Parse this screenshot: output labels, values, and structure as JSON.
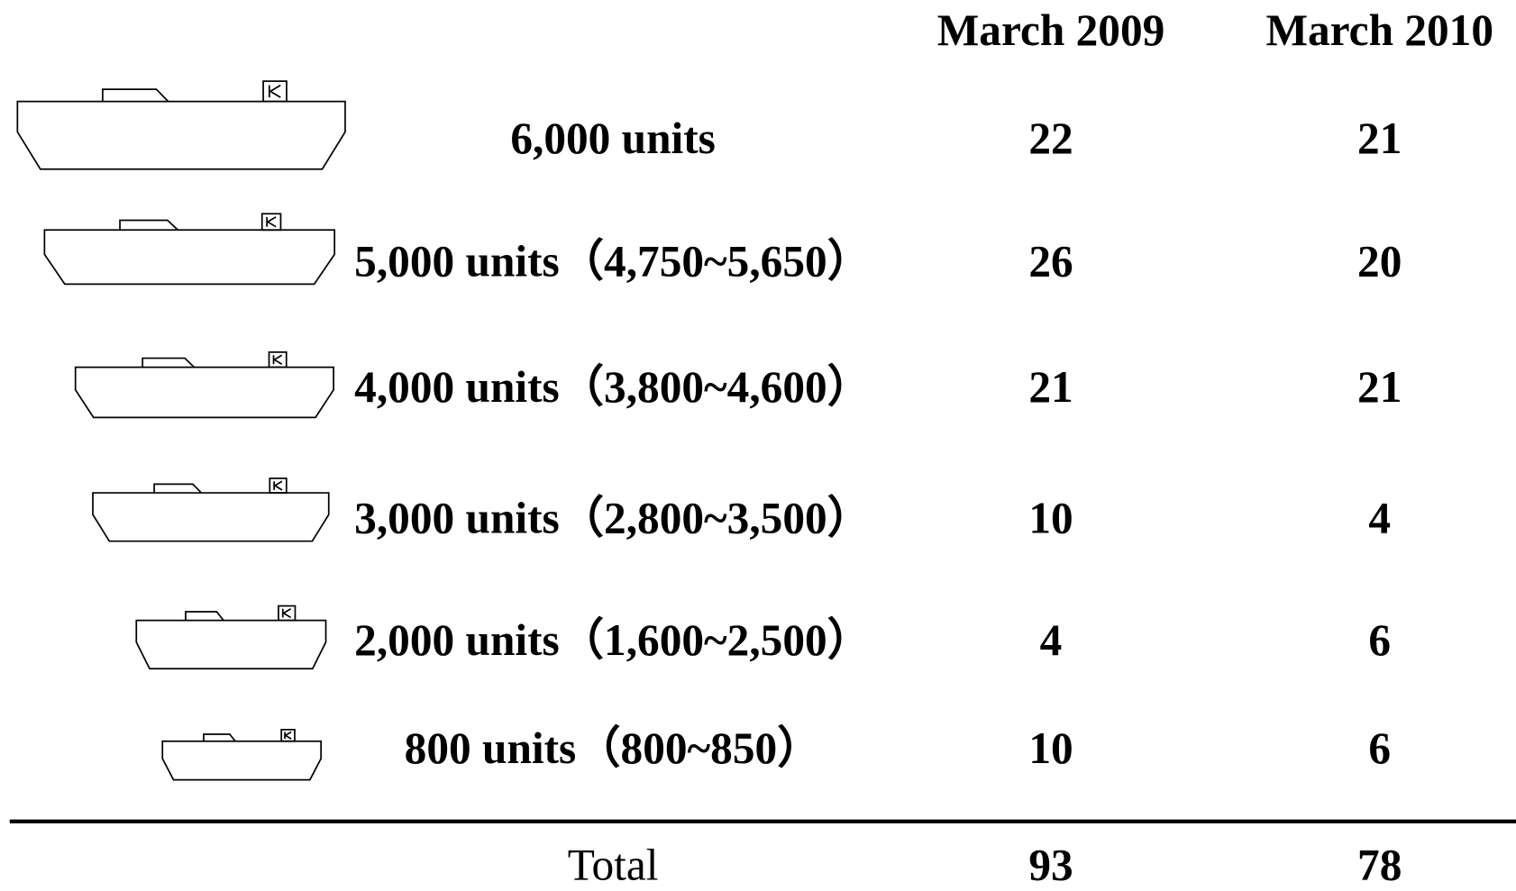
{
  "table": {
    "columns": [
      "March 2009",
      "March 2010"
    ],
    "rows": [
      {
        "label": "6,000 units",
        "values": [
          22,
          21
        ]
      },
      {
        "label": "5,000 units（4,750~5,650）",
        "values": [
          26,
          20
        ]
      },
      {
        "label": "4,000 units（3,800~4,600）",
        "values": [
          21,
          21
        ]
      },
      {
        "label": "3,000 units（2,800~3,500）",
        "values": [
          10,
          4
        ]
      },
      {
        "label": "2,000 units（1,600~2,500）",
        "values": [
          4,
          6
        ]
      },
      {
        "label": "800 units（800~850）",
        "values": [
          10,
          6
        ]
      }
    ],
    "total": {
      "label": "Total",
      "values": [
        93,
        78
      ]
    }
  }
}
